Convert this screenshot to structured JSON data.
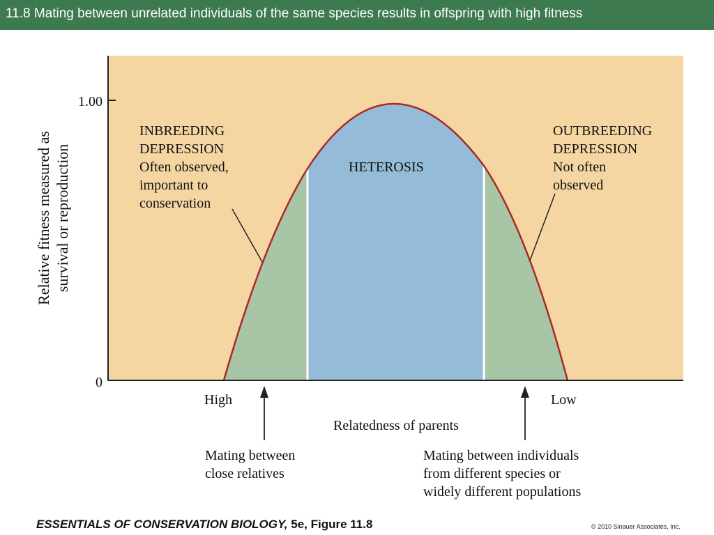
{
  "slide": {
    "title": "11.8  Mating between unrelated individuals of the same species results in offspring with high fitness"
  },
  "diagram": {
    "y_axis_label_line1": "Relative fitness measured as",
    "y_axis_label_line2": "survival or reproduction",
    "y_tick_top": "1.00",
    "y_tick_bottom": "0",
    "x_axis_label": "Relatedness of parents",
    "x_left_label": "High",
    "x_right_label": "Low",
    "region_center": "HETEROSIS",
    "inbreeding": [
      "INBREEDING",
      "DEPRESSION",
      "Often observed,",
      "important to",
      "conservation"
    ],
    "outbreeding": [
      "OUTBREEDING",
      "DEPRESSION",
      "Not often",
      "observed"
    ],
    "left_arrow_caption": [
      "Mating between",
      "close relatives"
    ],
    "right_arrow_caption": [
      "Mating between individuals",
      "from different species or",
      "widely different populations"
    ],
    "colors": {
      "background": "#f5d6a2",
      "heterosis": "#94bbd8",
      "depression": "#a8c6a6",
      "curve": "#a8282b",
      "title_bar": "#3d7a4f"
    }
  },
  "footer": {
    "book": "ESSENTIALS OF CONSERVATION BIOLOGY,",
    "figure": " 5e, Figure 11.8",
    "copyright": "© 2010 Sinauer Associates, Inc."
  }
}
